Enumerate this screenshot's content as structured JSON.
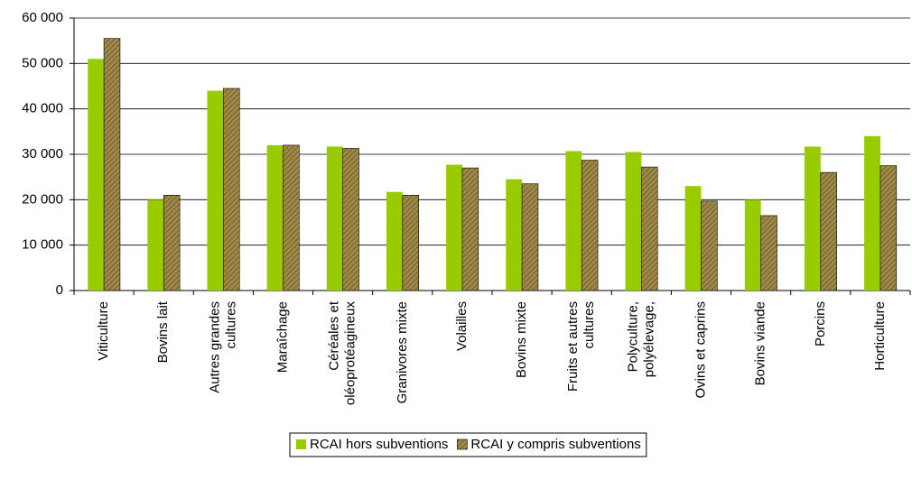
{
  "chart_data": {
    "type": "bar",
    "categories": [
      "Viticulture",
      "Bovins lait",
      "Autres grandes cultures",
      "Maraîchage",
      "Céréales et oléoprotéagineux",
      "Granivores mixte",
      "Volailles",
      "Bovins mixte",
      "Fruits et autres cultures",
      "Polyculture, polyélevage,",
      "Ovins et caprins",
      "Bovins viande",
      "Porcins",
      "Horticulture"
    ],
    "series": [
      {
        "name": "RCAI hors subventions",
        "color": "#99cc00",
        "values": [
          51000,
          20000,
          44000,
          32000,
          31700,
          21700,
          27700,
          24500,
          30700,
          30500,
          23000,
          20000,
          31700,
          34000
        ]
      },
      {
        "name": "RCAI y compris subventions",
        "color": "#a08a4a",
        "values": [
          55500,
          21000,
          44500,
          32000,
          31300,
          21000,
          27000,
          23500,
          28700,
          27200,
          19700,
          16500,
          26000,
          27500
        ]
      }
    ],
    "ylim": [
      0,
      60000
    ],
    "yticks": [
      0,
      {
        "value": 10000,
        "label": "10 000"
      },
      {
        "value": 20000,
        "label": "20 000"
      },
      {
        "value": 30000,
        "label": "30 000"
      },
      {
        "value": 40000,
        "label": "40 000"
      },
      {
        "value": 50000,
        "label": "50 000"
      },
      {
        "value": 60000,
        "label": "60 000"
      }
    ],
    "grid": true,
    "legend": "bottom"
  }
}
